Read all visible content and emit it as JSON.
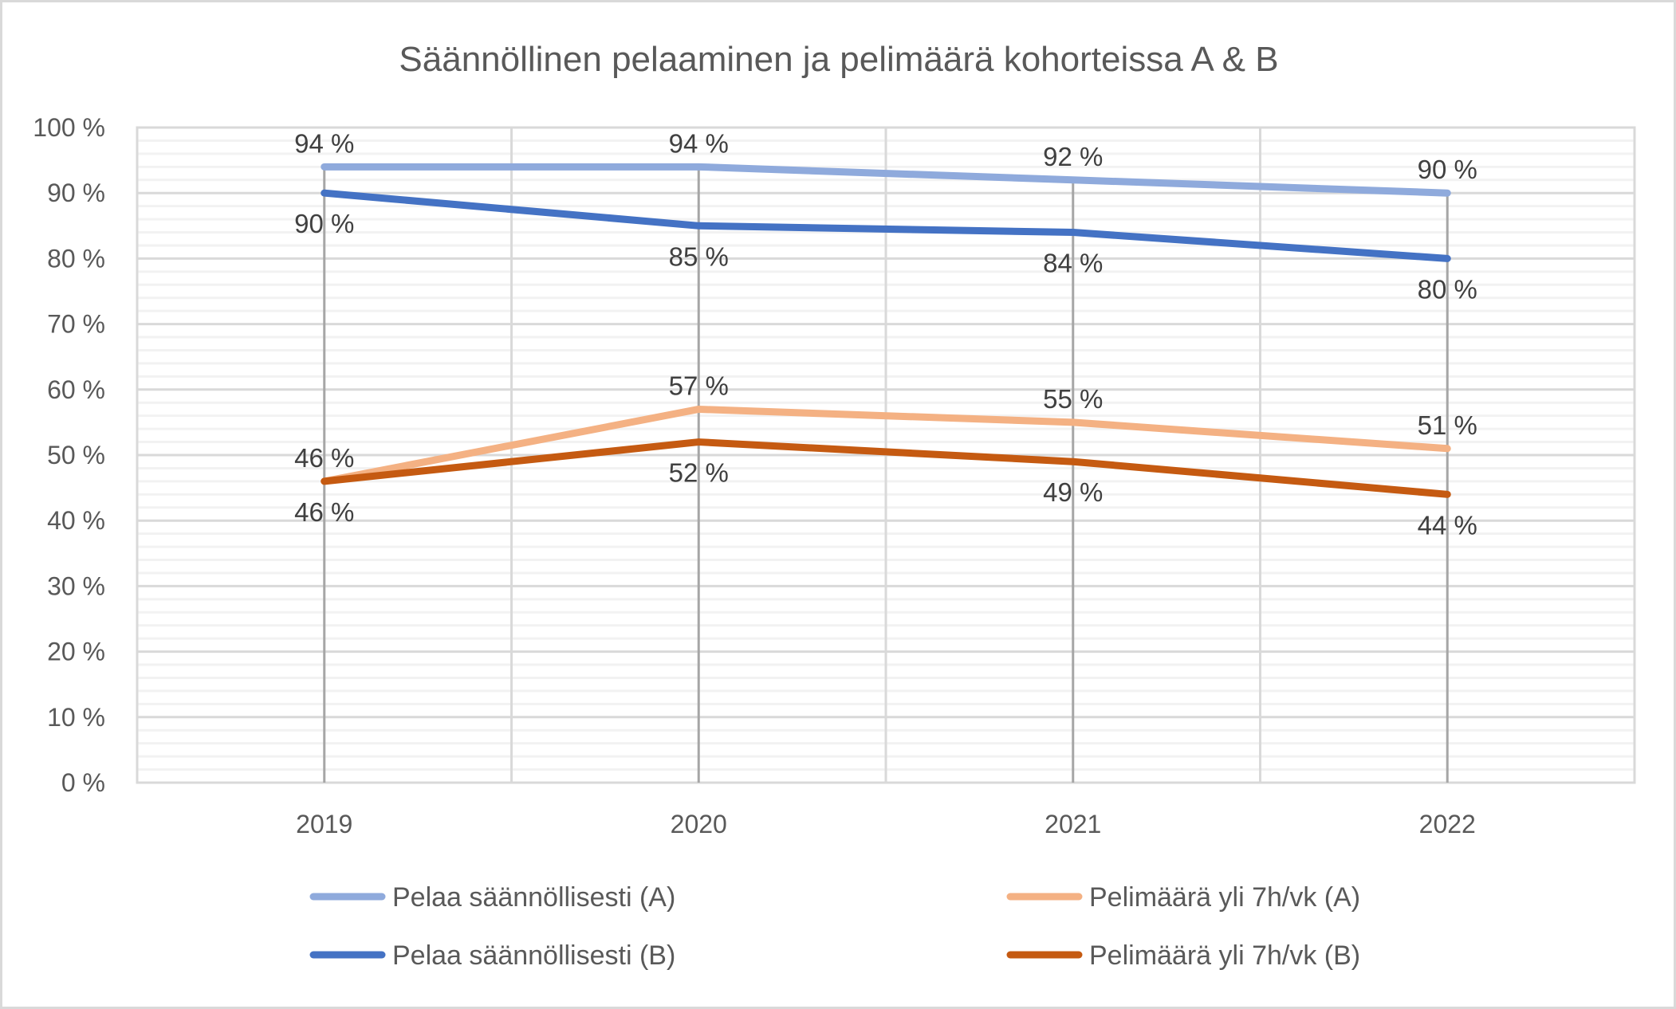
{
  "chart_data": {
    "type": "line",
    "title": "Säännöllinen pelaaminen ja pelimäärä kohorteissa A & B",
    "xlabel": "",
    "ylabel": "",
    "categories": [
      "2019",
      "2020",
      "2021",
      "2022"
    ],
    "ylim": [
      0,
      100
    ],
    "y_ticks": [
      "0 %",
      "10 %",
      "20 %",
      "30 %",
      "40 %",
      "50 %",
      "60 %",
      "70 %",
      "80 %",
      "90 %",
      "100 %"
    ],
    "grid": true,
    "legend_position": "bottom",
    "series": [
      {
        "name": "Pelaa säännöllisesti (A)",
        "color": "#8faadc",
        "values": [
          94,
          94,
          92,
          90
        ],
        "labels": [
          "94 %",
          "94 %",
          "92 %",
          "90 %"
        ],
        "label_position": "above"
      },
      {
        "name": "Pelaa säännöllisesti (B)",
        "color": "#4472c4",
        "values": [
          90,
          85,
          84,
          80
        ],
        "labels": [
          "90 %",
          "85 %",
          "84 %",
          "80 %"
        ],
        "label_position": "below"
      },
      {
        "name": "Pelimäärä yli 7h/vk (A)",
        "color": "#f4b183",
        "values": [
          46,
          57,
          55,
          51
        ],
        "labels": [
          "46 %",
          "57 %",
          "55 %",
          "51 %"
        ],
        "label_position": "above"
      },
      {
        "name": "Pelimäärä yli 7h/vk (B)",
        "color": "#c55a11",
        "values": [
          46,
          52,
          49,
          44
        ],
        "labels": [
          "46 %",
          "52 %",
          "49 %",
          "44 %"
        ],
        "label_position": "below"
      }
    ]
  },
  "legend": {
    "items": [
      {
        "label": "Pelaa säännöllisesti (A)",
        "color": "#8faadc"
      },
      {
        "label": "Pelimäärä yli 7h/vk (A)",
        "color": "#f4b183"
      },
      {
        "label": "Pelaa säännöllisesti (B)",
        "color": "#4472c4"
      },
      {
        "label": "Pelimäärä yli 7h/vk (B)",
        "color": "#c55a11"
      }
    ]
  }
}
